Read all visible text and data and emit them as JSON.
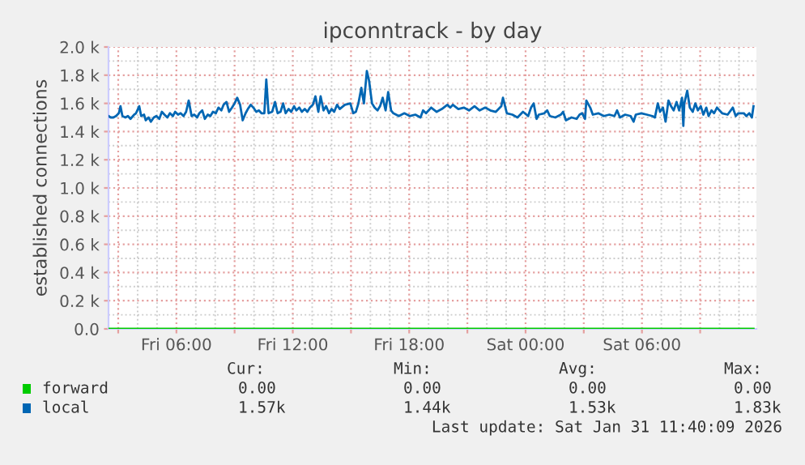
{
  "chart_data": {
    "type": "line",
    "title": "ipconntrack - by day",
    "ylabel": "established connections",
    "xlim": [
      "2026-01-30T02:30",
      "2026-01-31T11:54"
    ],
    "ylim": [
      0,
      2000
    ],
    "xticks": [
      {
        "value": "2026-01-30T03:00",
        "label": null
      },
      {
        "value": "2026-01-30T06:00",
        "label": "Fri 06:00"
      },
      {
        "value": "2026-01-30T09:00",
        "label": null
      },
      {
        "value": "2026-01-30T12:00",
        "label": "Fri 12:00"
      },
      {
        "value": "2026-01-30T15:00",
        "label": null
      },
      {
        "value": "2026-01-30T18:00",
        "label": "Fri 18:00"
      },
      {
        "value": "2026-01-30T21:00",
        "label": null
      },
      {
        "value": "2026-01-31T00:00",
        "label": "Sat 00:00"
      },
      {
        "value": "2026-01-31T03:00",
        "label": null
      },
      {
        "value": "2026-01-31T06:00",
        "label": "Sat 06:00"
      },
      {
        "value": "2026-01-31T09:00",
        "label": null
      }
    ],
    "yticks": [
      {
        "value": 0,
        "label": "0.0"
      },
      {
        "value": 200,
        "label": "0.2 k"
      },
      {
        "value": 400,
        "label": "0.4 k"
      },
      {
        "value": 600,
        "label": "0.6 k"
      },
      {
        "value": 800,
        "label": "0.8 k"
      },
      {
        "value": 1000,
        "label": "1.0 k"
      },
      {
        "value": 1200,
        "label": "1.2 k"
      },
      {
        "value": 1400,
        "label": "1.4 k"
      },
      {
        "value": 1600,
        "label": "1.6 k"
      },
      {
        "value": 1800,
        "label": "1.8 k"
      },
      {
        "value": 2000,
        "label": "2.0 k"
      }
    ],
    "grid": true,
    "legend": "bottom",
    "marker": "none",
    "line_style": "solid",
    "series": [
      {
        "name": "forward",
        "color": "#00cc00",
        "x": [
          "2026-01-30T02:30",
          "2026-01-31T11:45"
        ],
        "values": [
          0,
          0
        ]
      },
      {
        "name": "local",
        "color": "#0066b3",
        "x": [
          "2026-01-30T02:30",
          "2026-01-30T02:37",
          "2026-01-30T02:45",
          "2026-01-30T02:53",
          "2026-01-30T03:02",
          "2026-01-30T03:07",
          "2026-01-30T03:13",
          "2026-01-30T03:22",
          "2026-01-30T03:30",
          "2026-01-30T03:38",
          "2026-01-30T03:49",
          "2026-01-30T03:55",
          "2026-01-30T04:05",
          "2026-01-30T04:11",
          "2026-01-30T04:20",
          "2026-01-30T04:25",
          "2026-01-30T04:34",
          "2026-01-30T04:41",
          "2026-01-30T04:50",
          "2026-01-30T04:58",
          "2026-01-30T05:07",
          "2026-01-30T05:15",
          "2026-01-30T05:23",
          "2026-01-30T05:32",
          "2026-01-30T05:40",
          "2026-01-30T05:49",
          "2026-01-30T05:56",
          "2026-01-30T06:05",
          "2026-01-30T06:13",
          "2026-01-30T06:22",
          "2026-01-30T06:30",
          "2026-01-30T06:38",
          "2026-01-30T06:47",
          "2026-01-30T06:55",
          "2026-01-30T07:04",
          "2026-01-30T07:11",
          "2026-01-30T07:20",
          "2026-01-30T07:28",
          "2026-01-30T07:37",
          "2026-01-30T07:45",
          "2026-01-30T07:53",
          "2026-01-30T08:02",
          "2026-01-30T08:10",
          "2026-01-30T08:19",
          "2026-01-30T08:26",
          "2026-01-30T08:35",
          "2026-01-30T08:43",
          "2026-01-30T08:52",
          "2026-01-30T09:00",
          "2026-01-30T09:08",
          "2026-01-30T09:17",
          "2026-01-30T09:25",
          "2026-01-30T09:34",
          "2026-01-30T09:41",
          "2026-01-30T09:50",
          "2026-01-30T09:58",
          "2026-01-30T10:07",
          "2026-01-30T10:15",
          "2026-01-30T10:23",
          "2026-01-30T10:32",
          "2026-01-30T10:38",
          "2026-01-30T10:45",
          "2026-01-30T10:56",
          "2026-01-30T11:05",
          "2026-01-30T11:13",
          "2026-01-30T11:22",
          "2026-01-30T11:30",
          "2026-01-30T11:38",
          "2026-01-30T11:47",
          "2026-01-30T11:55",
          "2026-01-30T12:04",
          "2026-01-30T12:11",
          "2026-01-30T12:20",
          "2026-01-30T12:28",
          "2026-01-30T12:37",
          "2026-01-30T12:45",
          "2026-01-30T12:53",
          "2026-01-30T13:02",
          "2026-01-30T13:10",
          "2026-01-30T13:19",
          "2026-01-30T13:26",
          "2026-01-30T13:35",
          "2026-01-30T13:43",
          "2026-01-30T13:52",
          "2026-01-30T14:00",
          "2026-01-30T14:08",
          "2026-01-30T14:17",
          "2026-01-30T14:25",
          "2026-01-30T14:41",
          "2026-01-30T14:58",
          "2026-01-30T15:07",
          "2026-01-30T15:15",
          "2026-01-30T15:23",
          "2026-01-30T15:32",
          "2026-01-30T15:40",
          "2026-01-30T15:49",
          "2026-01-30T15:56",
          "2026-01-30T16:05",
          "2026-01-30T16:13",
          "2026-01-30T16:22",
          "2026-01-30T16:30",
          "2026-01-30T16:38",
          "2026-01-30T16:47",
          "2026-01-30T16:55",
          "2026-01-30T17:04",
          "2026-01-30T17:11",
          "2026-01-30T17:28",
          "2026-01-30T17:45",
          "2026-01-30T18:02",
          "2026-01-30T18:19",
          "2026-01-30T18:35",
          "2026-01-30T18:43",
          "2026-01-30T18:52",
          "2026-01-30T19:08",
          "2026-01-30T19:25",
          "2026-01-30T19:41",
          "2026-01-30T19:58",
          "2026-01-30T20:07",
          "2026-01-30T20:15",
          "2026-01-30T20:32",
          "2026-01-30T20:49",
          "2026-01-30T21:05",
          "2026-01-30T21:22",
          "2026-01-30T21:38",
          "2026-01-30T21:55",
          "2026-01-30T22:11",
          "2026-01-30T22:28",
          "2026-01-30T22:45",
          "2026-01-30T22:50",
          "2026-01-30T23:02",
          "2026-01-30T23:19",
          "2026-01-30T23:35",
          "2026-01-30T23:52",
          "2026-01-31T00:08",
          "2026-01-31T00:17",
          "2026-01-31T00:25",
          "2026-01-31T00:34",
          "2026-01-31T00:41",
          "2026-01-31T00:58",
          "2026-01-31T01:07",
          "2026-01-31T01:15",
          "2026-01-31T01:32",
          "2026-01-31T01:49",
          "2026-01-31T01:56",
          "2026-01-31T02:05",
          "2026-01-31T02:22",
          "2026-01-31T02:38",
          "2026-01-31T02:47",
          "2026-01-31T02:55",
          "2026-01-31T03:04",
          "2026-01-31T03:08",
          "2026-01-31T03:20",
          "2026-01-31T03:28",
          "2026-01-31T03:45",
          "2026-01-31T04:02",
          "2026-01-31T04:19",
          "2026-01-31T04:35",
          "2026-01-31T04:43",
          "2026-01-31T04:52",
          "2026-01-31T05:08",
          "2026-01-31T05:25",
          "2026-01-31T05:34",
          "2026-01-31T05:41",
          "2026-01-31T05:58",
          "2026-01-31T06:15",
          "2026-01-31T06:32",
          "2026-01-31T06:40",
          "2026-01-31T06:49",
          "2026-01-31T06:56",
          "2026-01-31T07:05",
          "2026-01-31T07:13",
          "2026-01-31T07:22",
          "2026-01-31T07:30",
          "2026-01-31T07:38",
          "2026-01-31T07:47",
          "2026-01-31T07:55",
          "2026-01-31T08:04",
          "2026-01-31T08:08",
          "2026-01-31T08:11",
          "2026-01-31T08:20",
          "2026-01-31T08:28",
          "2026-01-31T08:37",
          "2026-01-31T08:45",
          "2026-01-31T08:53",
          "2026-01-31T09:02",
          "2026-01-31T09:10",
          "2026-01-31T09:19",
          "2026-01-31T09:26",
          "2026-01-31T09:35",
          "2026-01-31T09:43",
          "2026-01-31T09:52",
          "2026-01-31T10:08",
          "2026-01-31T10:25",
          "2026-01-31T10:41",
          "2026-01-31T10:50",
          "2026-01-31T10:58",
          "2026-01-31T11:15",
          "2026-01-31T11:23",
          "2026-01-31T11:32",
          "2026-01-31T11:40",
          "2026-01-31T11:45"
        ],
        "values": [
          1510,
          1500,
          1500,
          1510,
          1530,
          1580,
          1510,
          1500,
          1510,
          1490,
          1520,
          1530,
          1580,
          1510,
          1520,
          1480,
          1500,
          1470,
          1500,
          1510,
          1490,
          1540,
          1520,
          1500,
          1530,
          1510,
          1540,
          1520,
          1530,
          1510,
          1540,
          1620,
          1510,
          1520,
          1500,
          1530,
          1550,
          1490,
          1520,
          1510,
          1540,
          1530,
          1570,
          1550,
          1590,
          1610,
          1540,
          1570,
          1600,
          1640,
          1590,
          1480,
          1530,
          1560,
          1590,
          1570,
          1540,
          1550,
          1530,
          1530,
          1770,
          1530,
          1540,
          1610,
          1530,
          1540,
          1600,
          1530,
          1560,
          1540,
          1580,
          1550,
          1570,
          1540,
          1560,
          1540,
          1570,
          1590,
          1650,
          1540,
          1650,
          1550,
          1580,
          1530,
          1560,
          1540,
          1590,
          1560,
          1590,
          1600,
          1530,
          1540,
          1600,
          1710,
          1600,
          1830,
          1760,
          1600,
          1570,
          1550,
          1580,
          1640,
          1550,
          1680,
          1550,
          1530,
          1510,
          1530,
          1510,
          1520,
          1500,
          1550,
          1530,
          1570,
          1540,
          1560,
          1590,
          1570,
          1590,
          1560,
          1570,
          1550,
          1580,
          1550,
          1570,
          1550,
          1540,
          1580,
          1640,
          1530,
          1520,
          1500,
          1540,
          1510,
          1570,
          1600,
          1490,
          1520,
          1530,
          1550,
          1510,
          1500,
          1520,
          1540,
          1480,
          1500,
          1490,
          1520,
          1530,
          1490,
          1620,
          1570,
          1520,
          1530,
          1510,
          1520,
          1510,
          1550,
          1500,
          1520,
          1510,
          1470,
          1520,
          1530,
          1520,
          1510,
          1500,
          1600,
          1540,
          1570,
          1470,
          1620,
          1580,
          1550,
          1610,
          1550,
          1640,
          1440,
          1600,
          1690,
          1570,
          1540,
          1600,
          1550,
          1580,
          1520,
          1570,
          1510,
          1550,
          1530,
          1570,
          1530,
          1520,
          1570,
          1510,
          1530,
          1530,
          1510,
          1530,
          1500,
          1580
        ]
      }
    ],
    "annotations": [
      "Cur:",
      "Min:",
      "Avg:",
      "Max:",
      "0.00",
      "0.00",
      "0.00",
      "0.00",
      "1.57k",
      "1.44k",
      "1.53k",
      "1.83k",
      "Last update: Sat Jan 31 11:40:09 2026"
    ]
  }
}
